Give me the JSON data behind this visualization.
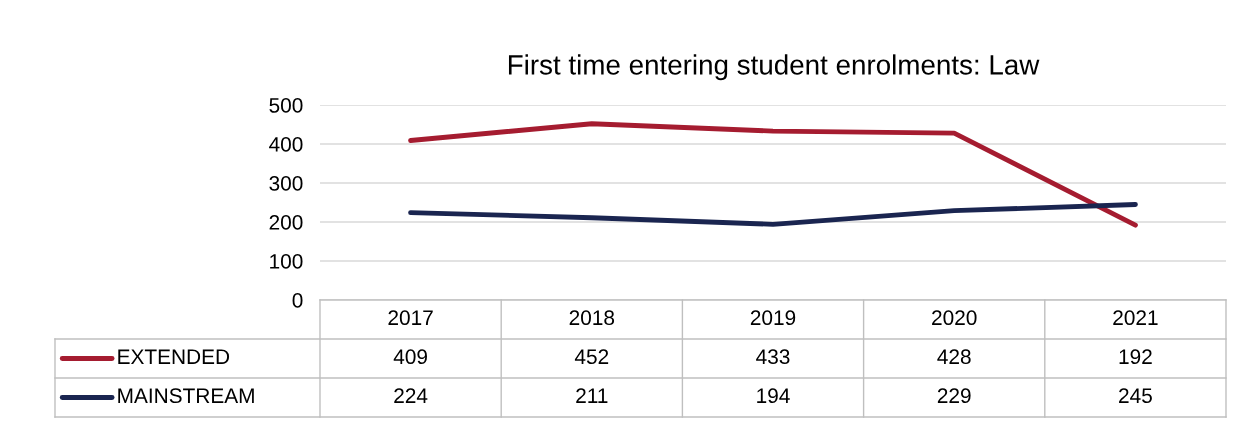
{
  "chart_data": {
    "type": "line",
    "title": "First time entering student enrolments: Law",
    "categories": [
      "2017",
      "2018",
      "2019",
      "2020",
      "2021"
    ],
    "series": [
      {
        "name": "EXTENDED",
        "color": "#a51c30",
        "values": [
          409,
          452,
          433,
          428,
          192
        ]
      },
      {
        "name": "MAINSTREAM",
        "color": "#1a2550",
        "values": [
          224,
          211,
          194,
          229,
          245
        ]
      }
    ],
    "ylim": [
      0,
      500
    ],
    "yticks": [
      0,
      100,
      200,
      300,
      400,
      500
    ],
    "grid": "y",
    "legend": "bottom",
    "data_labels": true,
    "marker": "none",
    "line_style": "solid"
  }
}
